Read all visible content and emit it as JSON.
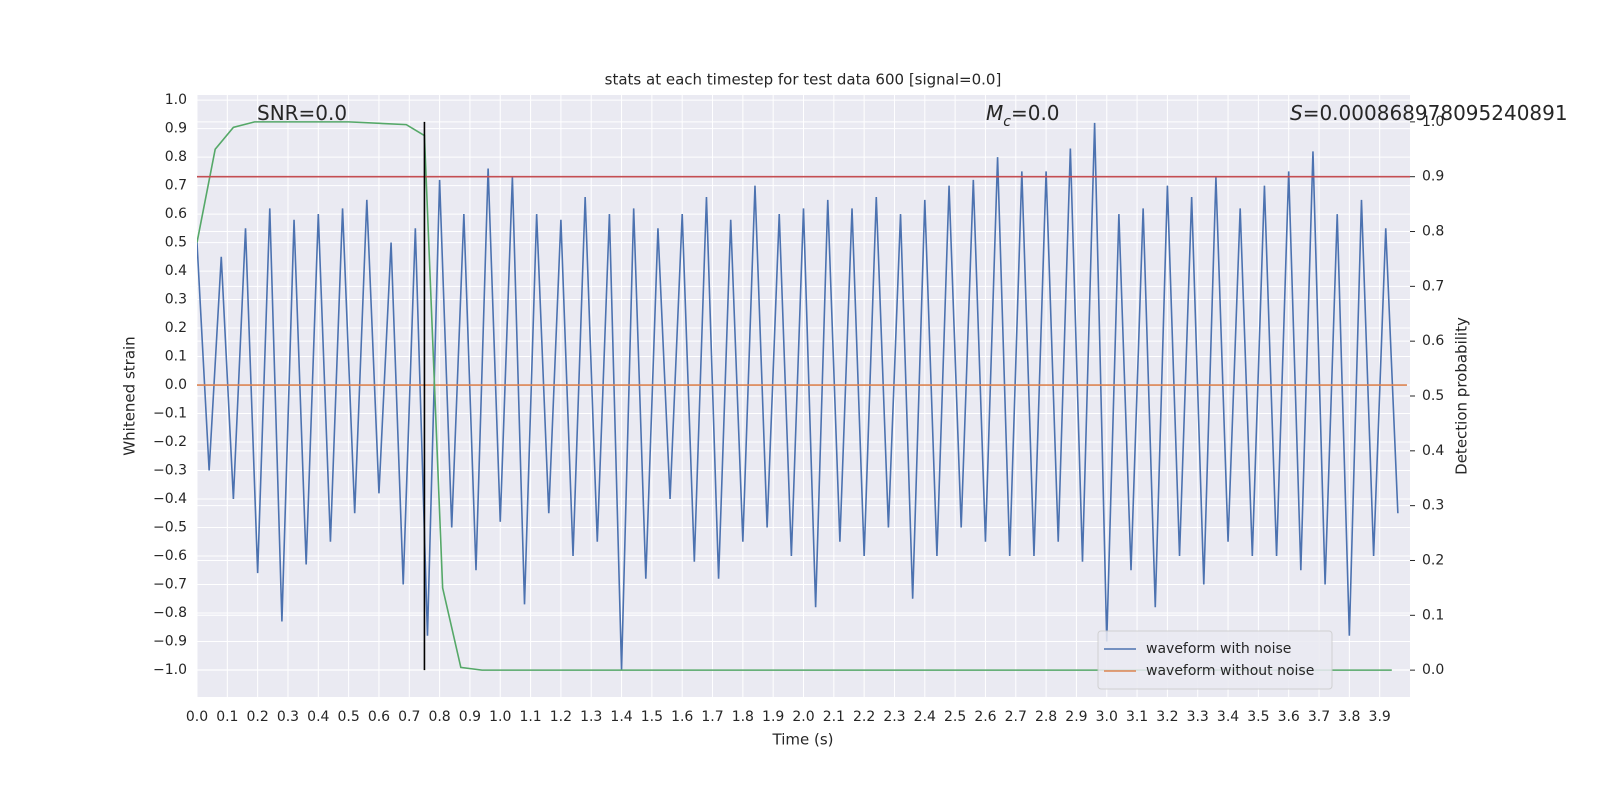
{
  "chart_data": {
    "type": "line",
    "title": "stats at each timestep for test data 600 [signal=0.0]",
    "x_label": "Time (s)",
    "y_label": "Whitened strain",
    "y2_label": "Detection probability",
    "grid": true,
    "legend_position": "lower right",
    "xlim": [
      0,
      4.0
    ],
    "ylim": [
      -1.095,
      1.018
    ],
    "y2lim": [
      -0.049,
      1.049
    ],
    "xticks": [
      {
        "value": 0,
        "label": "0.0"
      },
      0.1,
      0.2,
      0.3,
      0.4,
      0.5,
      0.6,
      0.7,
      0.8,
      0.9,
      {
        "value": 1,
        "label": "1.0"
      },
      1.1,
      1.2,
      1.3,
      1.4,
      1.5,
      1.6,
      1.7,
      1.8,
      1.9,
      {
        "value": 2,
        "label": "2.0"
      },
      2.1,
      2.2,
      2.3,
      2.4,
      2.5,
      2.6,
      2.7,
      2.8,
      2.9,
      {
        "value": 3,
        "label": "3.0"
      },
      3.1,
      3.2,
      3.3,
      3.4,
      3.5,
      3.6,
      3.7,
      3.8,
      3.9
    ],
    "yticks": [
      {
        "value": -1,
        "label": "−1.0"
      },
      {
        "value": -0.9,
        "label": "−0.9"
      },
      {
        "value": -0.8,
        "label": "−0.8"
      },
      {
        "value": -0.7,
        "label": "−0.7"
      },
      {
        "value": -0.6,
        "label": "−0.6"
      },
      {
        "value": -0.5,
        "label": "−0.5"
      },
      {
        "value": -0.4,
        "label": "−0.4"
      },
      {
        "value": -0.3,
        "label": "−0.3"
      },
      {
        "value": -0.2,
        "label": "−0.2"
      },
      {
        "value": -0.1,
        "label": "−0.1"
      },
      {
        "value": 0,
        "label": "0.0"
      },
      0.1,
      0.2,
      0.3,
      0.4,
      0.5,
      0.6,
      0.7,
      0.8,
      0.9,
      {
        "value": 1,
        "label": "1.0"
      }
    ],
    "y2ticks": [
      {
        "value": 0,
        "label": "0.0"
      },
      0.1,
      0.2,
      0.3,
      0.4,
      0.5,
      0.6,
      0.7,
      0.8,
      0.9,
      {
        "value": 1,
        "label": "1.0"
      }
    ],
    "series": [
      {
        "name": "waveform with noise",
        "color": "#4c72b0",
        "x": [
          0,
          0.04,
          0.08,
          0.12,
          0.16,
          0.2,
          0.24,
          0.28,
          0.32,
          0.36,
          0.4,
          0.44,
          0.48,
          0.52,
          0.56,
          0.6,
          0.64,
          0.68,
          0.72,
          0.76,
          0.8,
          0.84,
          0.88,
          0.92,
          0.96,
          1,
          1.04,
          1.08,
          1.12,
          1.16,
          1.2,
          1.24,
          1.28,
          1.32,
          1.36,
          1.4,
          1.44,
          1.48,
          1.52,
          1.56,
          1.6,
          1.64,
          1.68,
          1.72,
          1.76,
          1.8,
          1.84,
          1.88,
          1.92,
          1.96,
          2,
          2.04,
          2.08,
          2.12,
          2.16,
          2.2,
          2.24,
          2.28,
          2.32,
          2.36,
          2.4,
          2.44,
          2.48,
          2.52,
          2.56,
          2.6,
          2.64,
          2.68,
          2.72,
          2.76,
          2.8,
          2.84,
          2.88,
          2.92,
          2.96,
          3,
          3.04,
          3.08,
          3.12,
          3.16,
          3.2,
          3.24,
          3.28,
          3.32,
          3.36,
          3.4,
          3.44,
          3.48,
          3.52,
          3.56,
          3.6,
          3.64,
          3.68,
          3.72,
          3.76,
          3.8,
          3.84,
          3.88,
          3.92,
          3.96
        ],
        "values": [
          0.5,
          -0.3,
          0.45,
          -0.4,
          0.55,
          -0.66,
          0.62,
          -0.83,
          0.58,
          -0.63,
          0.6,
          -0.55,
          0.62,
          -0.45,
          0.65,
          -0.38,
          0.5,
          -0.7,
          0.55,
          -0.88,
          0.72,
          -0.5,
          0.6,
          -0.65,
          0.76,
          -0.48,
          0.73,
          -0.77,
          0.6,
          -0.45,
          0.58,
          -0.6,
          0.66,
          -0.55,
          0.6,
          -1.0,
          0.62,
          -0.68,
          0.55,
          -0.4,
          0.6,
          -0.62,
          0.66,
          -0.68,
          0.58,
          -0.55,
          0.7,
          -0.5,
          0.6,
          -0.6,
          0.62,
          -0.78,
          0.65,
          -0.55,
          0.62,
          -0.6,
          0.66,
          -0.5,
          0.6,
          -0.75,
          0.65,
          -0.6,
          0.7,
          -0.5,
          0.72,
          -0.55,
          0.8,
          -0.6,
          0.75,
          -0.6,
          0.75,
          -0.55,
          0.83,
          -0.62,
          0.92,
          -0.9,
          0.6,
          -0.65,
          0.62,
          -0.78,
          0.7,
          -0.6,
          0.66,
          -0.7,
          0.73,
          -0.55,
          0.62,
          -0.6,
          0.7,
          -0.6,
          0.75,
          -0.65,
          0.82,
          -0.7,
          0.6,
          -0.88,
          0.65,
          -0.6,
          0.55,
          -0.45
        ]
      },
      {
        "name": "waveform without noise",
        "color": "#dd8452",
        "x": [
          0,
          3.99
        ],
        "values": [
          0,
          0
        ]
      },
      {
        "color": "#55a868",
        "axis": "y2",
        "x": [
          0,
          0.06,
          0.12,
          0.19,
          0.31,
          0.5,
          0.69,
          0.75,
          0.81,
          0.87,
          0.94,
          1.5,
          2.5,
          3.94
        ],
        "values": [
          0.78,
          0.95,
          0.99,
          1.0,
          1.0,
          1.0,
          0.995,
          0.975,
          0.15,
          0.005,
          0.0,
          0.0,
          0.0,
          0.0
        ]
      }
    ],
    "hlines": [
      {
        "value": 0.9,
        "axis": "y2",
        "color": "#c44e52"
      }
    ],
    "vlines": [
      {
        "value": 0.75,
        "ymin": 0,
        "ymax": 1,
        "axis": "y2",
        "color": "#000000"
      }
    ],
    "annotations": [
      {
        "parts": [
          "SNR=0.0"
        ]
      },
      {
        "parts": [
          "M",
          "c",
          "=0.0"
        ]
      },
      {
        "parts": [
          "S",
          "=0.000868978095240891"
        ]
      }
    ]
  }
}
